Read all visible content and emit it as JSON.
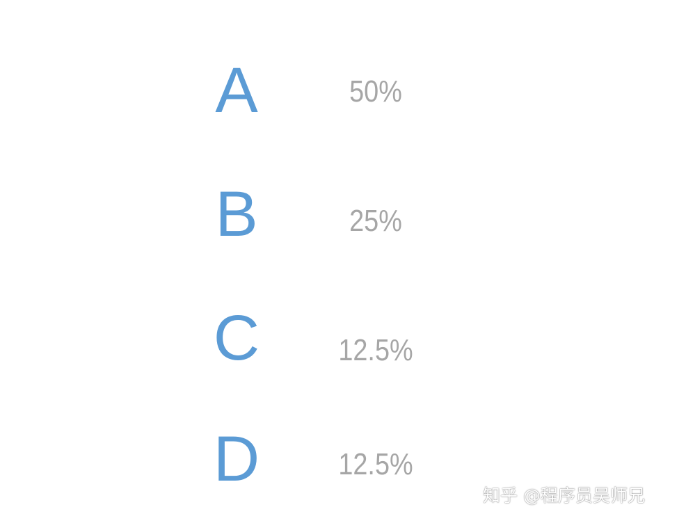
{
  "rows": [
    {
      "letter": "A",
      "percent": "50%"
    },
    {
      "letter": "B",
      "percent": "25%"
    },
    {
      "letter": "C",
      "percent": "12.5%"
    },
    {
      "letter": "D",
      "percent": "12.5%"
    }
  ],
  "watermark": "知乎 @程序员吴师兄",
  "colors": {
    "letter": "#5b9bd5",
    "percent": "#a6a6a6",
    "background": "#ffffff"
  }
}
